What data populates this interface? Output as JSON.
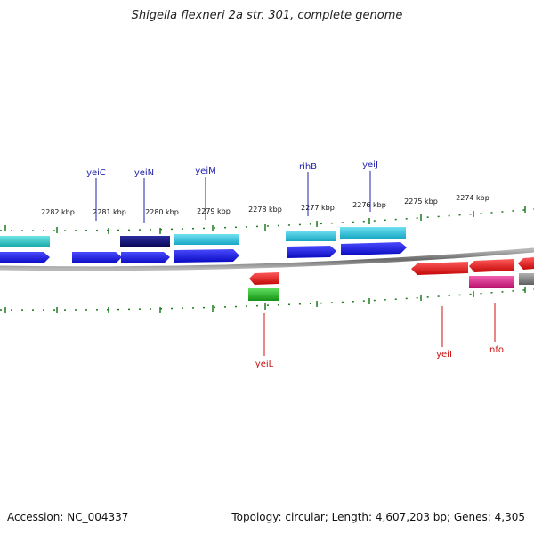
{
  "title": "Shigella flexneri 2a str. 301, complete genome",
  "footer": {
    "accession": "Accession: NC_004337",
    "summary": "Topology: circular; Length: 4,607,203 bp; Genes: 4,305"
  },
  "colors": {
    "backbone": "#7a7a7a",
    "ticks": "#1e7a1e",
    "label_top": "#1a1aa8",
    "label_bottom": "#cc1111",
    "cyan": "#2ec4dc",
    "teal": "#30c8c8",
    "navy": "#141478",
    "blue": "#1414e8",
    "red": "#ee1111",
    "pink": "#e0208a",
    "green": "#22bb22",
    "gray": "#8a8a8a"
  },
  "scale_labels": [
    "2282 kbp",
    "2281 kbp",
    "2280 kbp",
    "2279 kbp",
    "2278 kbp",
    "2277 kbp",
    "2276 kbp",
    "2275 kbp",
    "2274 kbp"
  ],
  "gene_labels_top": [
    "yeiC",
    "yeiN",
    "yeiM",
    "rihB",
    "yeiJ"
  ],
  "gene_labels_bottom": [
    "yeiL",
    "yeiI",
    "nfo"
  ]
}
